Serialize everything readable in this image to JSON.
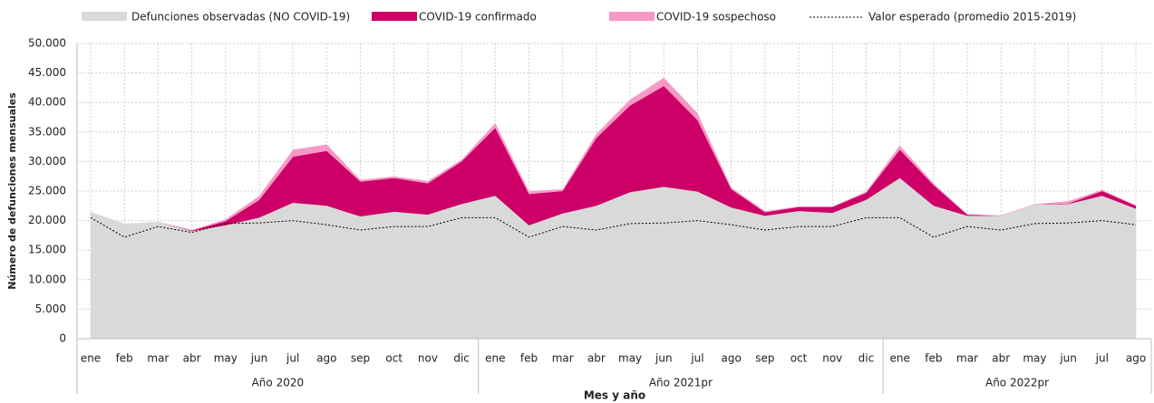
{
  "chart_data": {
    "type": "stacked_area",
    "y_label": "Número de defunciones mensuales",
    "x_label": "Mes y año",
    "categories": [
      "ene",
      "feb",
      "mar",
      "abr",
      "may",
      "jun",
      "jul",
      "ago",
      "sep",
      "oct",
      "nov",
      "dic",
      "ene",
      "feb",
      "mar",
      "abr",
      "may",
      "jun",
      "jul",
      "ago",
      "sep",
      "oct",
      "nov",
      "dic",
      "ene",
      "feb",
      "mar",
      "abr",
      "may",
      "jun",
      "jul",
      "ago"
    ],
    "groups": [
      {
        "label": "Año 2020",
        "span": 12
      },
      {
        "label": "Año 2021pr",
        "span": 12
      },
      {
        "label": "Año 2022pr",
        "span": 8
      }
    ],
    "series": [
      {
        "name": "Defunciones observadas (NO COVID-19)",
        "color": "#d9d9d9",
        "values": [
          21500,
          19500,
          19800,
          18200,
          19200,
          20500,
          23000,
          22500,
          20700,
          21500,
          21000,
          22800,
          24200,
          19200,
          21200,
          22500,
          24800,
          25700,
          24900,
          22200,
          20800,
          21600,
          21300,
          23500,
          27200,
          22500,
          20800,
          20800,
          22700,
          22800,
          24200,
          22000
        ]
      },
      {
        "name": "COVID-19 confirmado",
        "color": "#cc0066",
        "values": [
          0,
          0,
          0,
          100,
          700,
          3000,
          7800,
          9300,
          5900,
          5700,
          5300,
          7200,
          11500,
          5300,
          3800,
          11500,
          14700,
          17100,
          12100,
          3100,
          600,
          700,
          1000,
          1200,
          4800,
          3500,
          200,
          0,
          0,
          100,
          800,
          500
        ]
      },
      {
        "name": "COVID-19 sospechoso",
        "color": "#f799c5",
        "values": [
          0,
          0,
          0,
          100,
          300,
          700,
          1200,
          1100,
          300,
          300,
          400,
          300,
          800,
          500,
          300,
          700,
          1000,
          1400,
          1200,
          300,
          200,
          100,
          100,
          200,
          700,
          300,
          100,
          100,
          100,
          400,
          200,
          100
        ]
      }
    ],
    "expected": {
      "name": "Valor esperado (promedio 2015-2019)",
      "color": "#000000",
      "values": [
        20500,
        17200,
        19000,
        18000,
        19500,
        19600,
        20000,
        19300,
        18400,
        19000,
        19000,
        20500,
        20500,
        17200,
        19000,
        18400,
        19500,
        19600,
        20000,
        19300,
        18400,
        19000,
        19000,
        20500,
        20500,
        17200,
        19000,
        18400,
        19500,
        19600,
        20000,
        19300
      ]
    },
    "ylim": [
      0,
      50000
    ],
    "yticks": [
      0,
      {
        "value": 5000,
        "label": "5.000"
      },
      {
        "value": 10000,
        "label": "10.000"
      },
      {
        "value": 15000,
        "label": "15.000"
      },
      {
        "value": 20000,
        "label": "20.000"
      },
      {
        "value": 25000,
        "label": "25.000"
      },
      {
        "value": 30000,
        "label": "30.000"
      },
      {
        "value": 35000,
        "label": "35.000"
      },
      {
        "value": 40000,
        "label": "40.000"
      },
      {
        "value": 45000,
        "label": "45.000"
      },
      {
        "value": 50000,
        "label": "50.000"
      }
    ],
    "grid": true
  }
}
